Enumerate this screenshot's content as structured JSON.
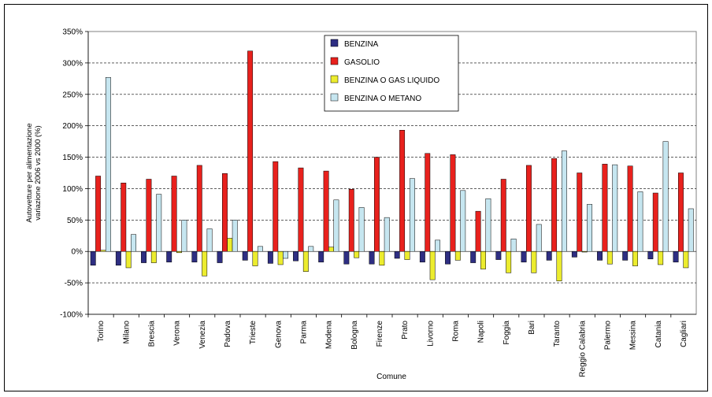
{
  "chart_data": {
    "type": "bar",
    "xlabel": "Comune",
    "ylabel": [
      "Autovetture per alimentazione",
      "variazione 2006 vs 2000 (%)"
    ],
    "ylim": [
      -100,
      350
    ],
    "yticks": [
      "-100%",
      "-50%",
      "0%",
      "50%",
      "100%",
      "150%",
      "200%",
      "250%",
      "300%",
      "350%"
    ],
    "grid": true,
    "legend_position": "top-center",
    "categories": [
      "Torino",
      "Milano",
      "Brescia",
      "Verona",
      "Venezia",
      "Padova",
      "Trieste",
      "Genova",
      "Parma",
      "Modena",
      "Bologna",
      "Firenze",
      "Prato",
      "Livorno",
      "Roma",
      "Napoli",
      "Foggia",
      "Bari",
      "Taranto",
      "Reggio Calabria",
      "Palermo",
      "Messina",
      "Catania",
      "Cagliari"
    ],
    "series": [
      {
        "name": "BENZINA",
        "color": "#2e2e82",
        "values": [
          -22,
          -22,
          -18,
          -17,
          -17,
          -18,
          -14,
          -19,
          -15,
          -17,
          -20,
          -20,
          -11,
          -17,
          -20,
          -18,
          -13,
          -17,
          -14,
          -9,
          -14,
          -14,
          -12,
          -17
        ]
      },
      {
        "name": "GASOLIO",
        "color": "#e8211d",
        "values": [
          120,
          109,
          115,
          120,
          137,
          124,
          319,
          143,
          133,
          128,
          99,
          150,
          193,
          156,
          154,
          64,
          115,
          137,
          148,
          125,
          139,
          136,
          93,
          125
        ]
      },
      {
        "name": "BENZINA O GAS LIQUIDO",
        "color": "#ecec2e",
        "values": [
          2,
          -26,
          -18,
          -2,
          -39,
          21,
          -23,
          -21,
          -32,
          7,
          -10,
          -22,
          -13,
          -45,
          -14,
          -28,
          -34,
          -34,
          -47,
          0,
          -20,
          -23,
          -21,
          -26
        ]
      },
      {
        "name": "BENZINA O METANO",
        "color": "#c6e6f0",
        "values": [
          277,
          27,
          91,
          50,
          36,
          50,
          8,
          -11,
          8,
          82,
          70,
          54,
          116,
          18,
          97,
          84,
          20,
          43,
          160,
          75,
          138,
          95,
          175,
          68
        ]
      }
    ]
  }
}
